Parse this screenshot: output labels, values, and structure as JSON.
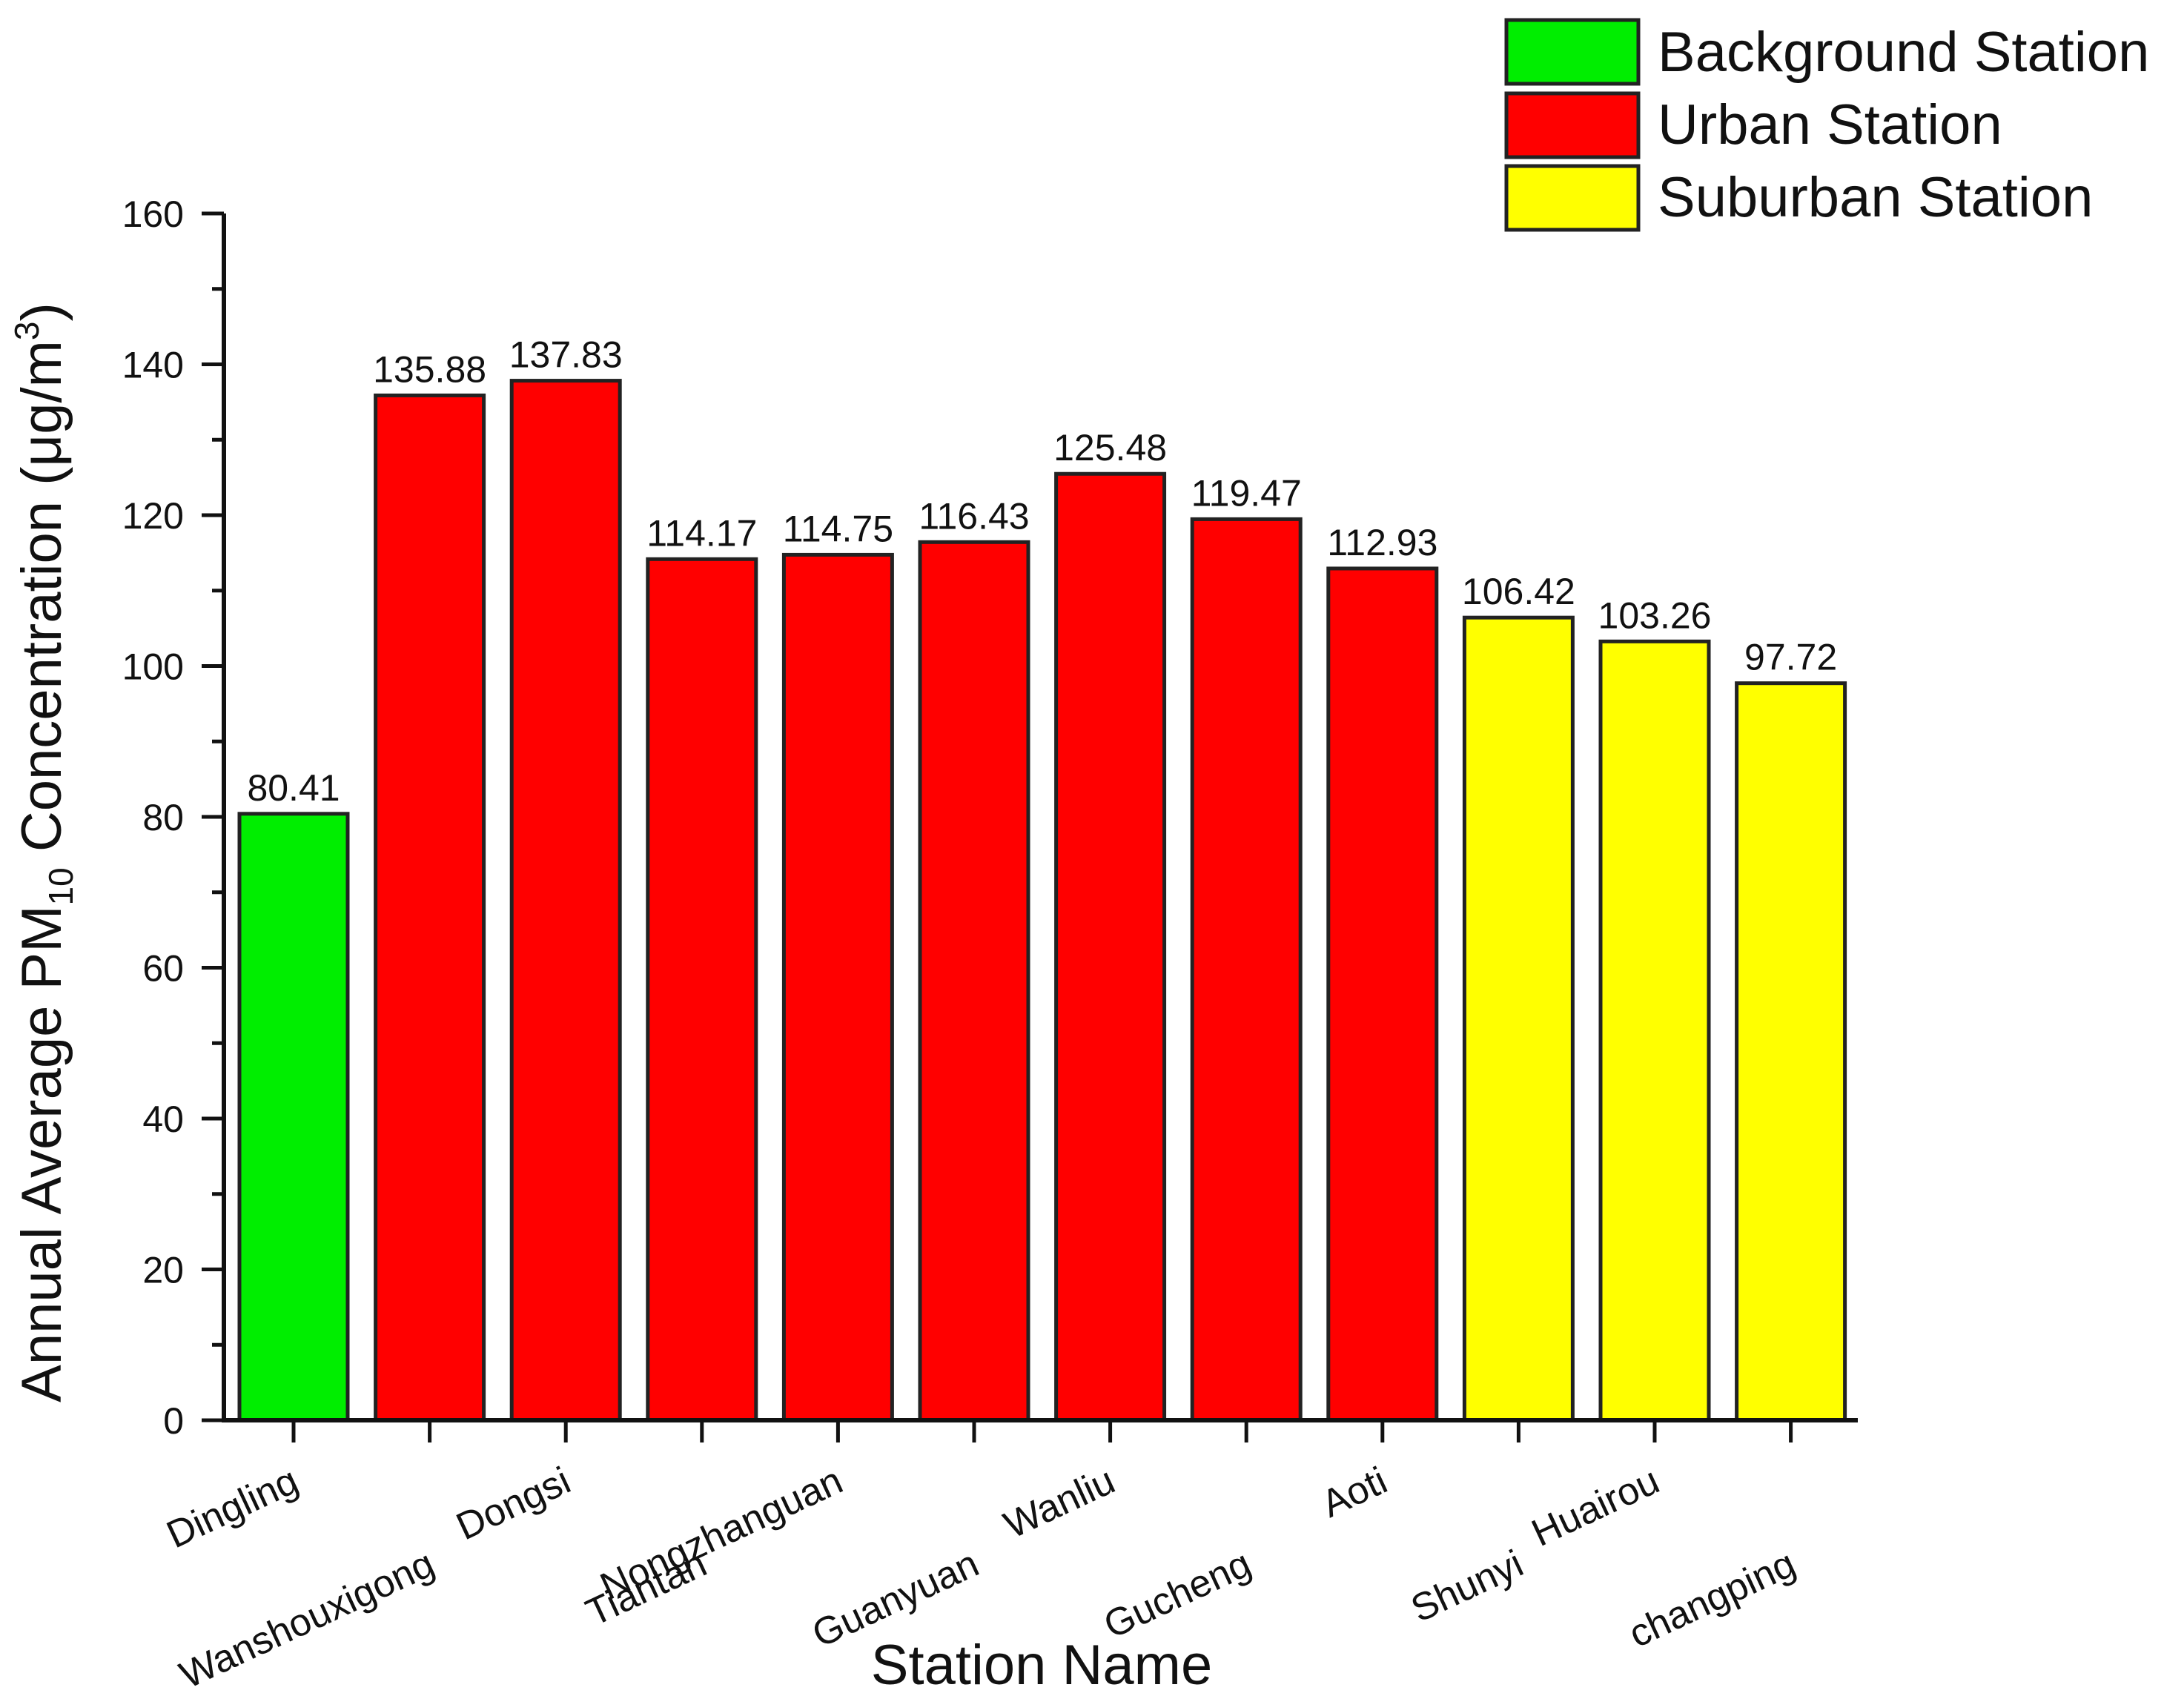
{
  "chart_data": {
    "type": "bar",
    "title": "",
    "xlabel": "Station Name",
    "ylabel": {
      "prefix": "Annual Average PM",
      "subscript": "10",
      "middle": " Concentration (",
      "unit_mu": "μ",
      "unit_rest": "g/m",
      "superscript": "3",
      "suffix": ")"
    },
    "ylim": [
      0,
      160
    ],
    "yticks": [
      "0",
      "20",
      "40",
      "60",
      "80",
      "100",
      "120",
      "140",
      "160"
    ],
    "grid": false,
    "legend_position": "top-right",
    "categories": [
      "Dingling",
      "Wanshouxigong",
      "Dongsi",
      "Tiantan",
      "Nongzhanguan",
      "Guanyuan",
      "Wanliu",
      "Gucheng",
      "Aoti",
      "Shunyi",
      "Huairou",
      "changping"
    ],
    "values": [
      80.41,
      135.88,
      137.83,
      114.17,
      114.75,
      116.43,
      125.48,
      119.47,
      112.93,
      106.42,
      103.26,
      97.72
    ],
    "value_labels": [
      "80.41",
      "135.88",
      "137.83",
      "114.17",
      "114.75",
      "116.43",
      "125.48",
      "119.47",
      "112.93",
      "106.42",
      "103.26",
      "97.72"
    ],
    "station_types": [
      "Background Station",
      "Urban Station",
      "Urban Station",
      "Urban Station",
      "Urban Station",
      "Urban Station",
      "Urban Station",
      "Urban Station",
      "Urban Station",
      "Suburban Station",
      "Suburban Station",
      "Suburban Station"
    ],
    "legend": [
      {
        "label": "Background Station",
        "color": "#00ee00"
      },
      {
        "label": "Urban Station",
        "color": "#ff0000"
      },
      {
        "label": "Suburban Station",
        "color": "#ffff00"
      }
    ]
  }
}
